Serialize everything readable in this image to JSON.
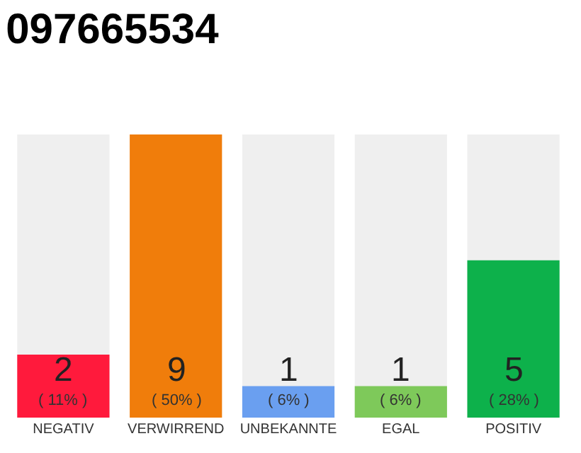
{
  "chart_data": {
    "type": "bar",
    "title": "097665534",
    "categories": [
      "NEGATIV",
      "VERWIRREND",
      "UNBEKANNTE",
      "EGAL",
      "POSITIV"
    ],
    "values": [
      2,
      9,
      1,
      1,
      5
    ],
    "colors": [
      "#ff1a3c",
      "#f07d0b",
      "#6a9ff0",
      "#7ec95a",
      "#0db14b"
    ],
    "value_labels": [
      "2\n( 11% )",
      "9\n( 50% )",
      "1\n( 6% )",
      "1\n( 6% )",
      "5\n( 28% )"
    ],
    "ylim": [
      0,
      9
    ],
    "grid": false,
    "legend": false
  }
}
